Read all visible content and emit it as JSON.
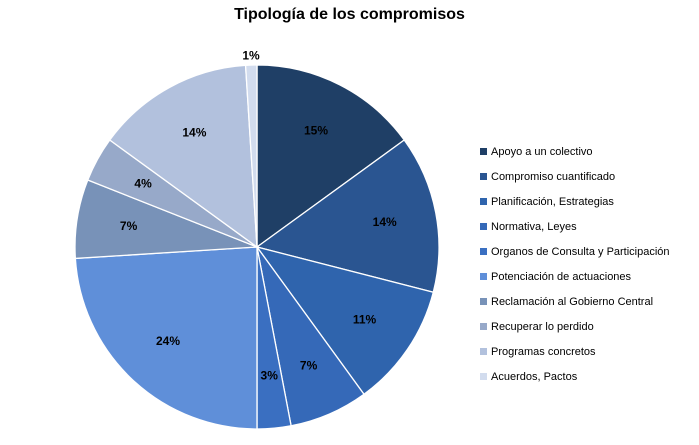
{
  "chart_data": {
    "type": "pie",
    "title": "Tipología de los compromisos",
    "categories": [
      "Apoyo a un colectivo",
      "Compromiso cuantificado",
      "Planificación, Estrategias",
      "Normativa, Leyes",
      "Organos de Consulta y Participación",
      "Potenciación de actuaciones",
      "Reclamación al Gobierno Central",
      "Recuperar lo perdido",
      "Programas concretos",
      "Acuerdos, Pactos"
    ],
    "values": [
      15,
      14,
      11,
      7,
      3,
      24,
      7,
      4,
      14,
      1
    ],
    "labels": [
      "15%",
      "14%",
      "11%",
      "7%",
      "3%",
      "24%",
      "7%",
      "4%",
      "14%",
      "1%"
    ],
    "colors": [
      "#1f3f66",
      "#2a5591",
      "#2f64ad",
      "#3569b8",
      "#3a6fc1",
      "#5f8fd9",
      "#7892b8",
      "#97a9c9",
      "#b2c1dd",
      "#d2dcee"
    ],
    "legend_position": "right"
  }
}
